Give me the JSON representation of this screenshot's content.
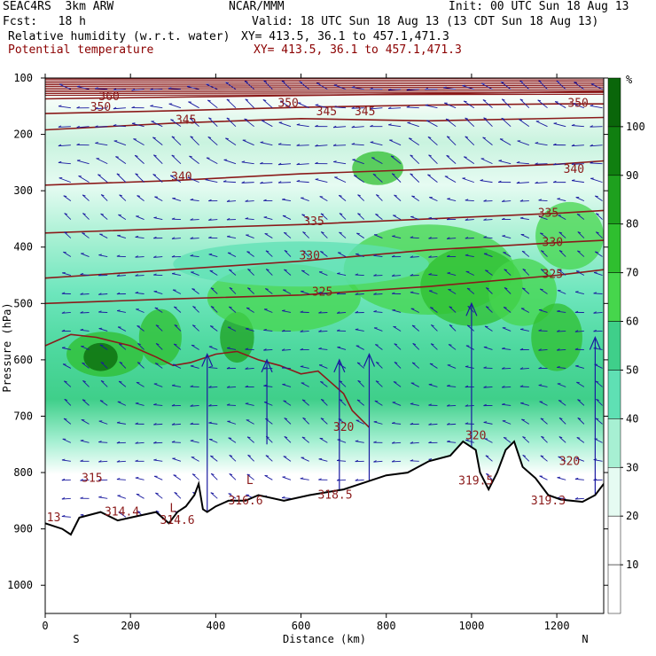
{
  "header": {
    "model": "SEAC4RS  3km ARW",
    "center": "NCAR/MMM",
    "init": "Init: 00 UTC Sun 18 Aug 13",
    "fcst": "Fcst:   18 h",
    "valid": "Valid: 18 UTC Sun 18 Aug 13 (13 CDT Sun 18 Aug 13)",
    "field1_label": "Relative humidity (w.r.t. water)",
    "field1_xy": "XY= 413.5, 36.1 to 457.1,471.3",
    "field2_label": "Potential temperature",
    "field2_xy": "XY= 413.5, 36.1 to 457.1,471.3"
  },
  "colors": {
    "theta": "#8b1a1a",
    "wind": "#1a1aa0",
    "terrain": "#000000"
  },
  "chart_data": {
    "type": "heatmap",
    "xlabel": "Distance (km)",
    "ylabel": "Pressure (hPa)",
    "x_ticks": [
      "0",
      "200",
      "400",
      "600",
      "800",
      "1000",
      "1200"
    ],
    "y_ticks": [
      "100",
      "200",
      "300",
      "400",
      "500",
      "600",
      "700",
      "800",
      "900",
      "1000"
    ],
    "xlim": [
      0,
      1310
    ],
    "ylim": [
      1050,
      100
    ],
    "end_labels": {
      "left": "S",
      "right": "N"
    },
    "colorbar": {
      "unit": "%",
      "levels": [
        "10",
        "20",
        "30",
        "40",
        "50",
        "60",
        "70",
        "80",
        "90",
        "100"
      ],
      "colors": [
        "#ffffff",
        "#ffffff",
        "#e6fbf2",
        "#a7f0d3",
        "#5fe0b4",
        "#3fcf8a",
        "#46d64c",
        "#2fbf2f",
        "#1ea01e",
        "#107f10",
        "#0a660a"
      ]
    },
    "theta_isolines": [
      {
        "label": "360",
        "label_x": 150,
        "points": [
          [
            0,
            137
          ],
          [
            300,
            134
          ],
          [
            600,
            131
          ],
          [
            900,
            128
          ],
          [
            1310,
            124
          ]
        ]
      },
      {
        "label": "350",
        "label_x": 130,
        "points": [
          [
            0,
            163
          ],
          [
            300,
            158
          ],
          [
            600,
            152
          ],
          [
            900,
            148
          ],
          [
            1200,
            146
          ],
          [
            1310,
            146
          ]
        ]
      },
      {
        "label": "350",
        "label_x": 570,
        "points": []
      },
      {
        "label": "350",
        "label_x": 1250,
        "points": []
      },
      {
        "label": "345",
        "label_x": 330,
        "points": [
          [
            0,
            192
          ],
          [
            300,
            180
          ],
          [
            600,
            172
          ],
          [
            900,
            176
          ],
          [
            1310,
            170
          ]
        ]
      },
      {
        "label": "345",
        "label_x": 660,
        "points": []
      },
      {
        "label": "345",
        "label_x": 750,
        "points": []
      },
      {
        "label": "340",
        "label_x": 320,
        "points": [
          [
            0,
            290
          ],
          [
            300,
            282
          ],
          [
            600,
            270
          ],
          [
            900,
            262
          ],
          [
            1200,
            253
          ],
          [
            1310,
            247
          ]
        ]
      },
      {
        "label": "340",
        "label_x": 1240,
        "points": []
      },
      {
        "label": "335",
        "label_x": 630,
        "points": [
          [
            0,
            375
          ],
          [
            300,
            367
          ],
          [
            600,
            360
          ],
          [
            900,
            350
          ],
          [
            1200,
            340
          ],
          [
            1310,
            335
          ]
        ]
      },
      {
        "label": "335",
        "label_x": 1180,
        "points": []
      },
      {
        "label": "330",
        "label_x": 620,
        "points": [
          [
            0,
            455
          ],
          [
            300,
            440
          ],
          [
            600,
            425
          ],
          [
            900,
            405
          ],
          [
            1200,
            392
          ],
          [
            1310,
            388
          ]
        ]
      },
      {
        "label": "330",
        "label_x": 1190,
        "points": []
      },
      {
        "label": "325",
        "label_x": 650,
        "points": [
          [
            0,
            500
          ],
          [
            300,
            492
          ],
          [
            600,
            485
          ],
          [
            900,
            470
          ],
          [
            1200,
            450
          ],
          [
            1310,
            440
          ]
        ]
      },
      {
        "label": "325",
        "label_x": 1190,
        "points": []
      },
      {
        "label": "320",
        "label_x": 700,
        "points": []
      },
      {
        "label": "320",
        "label_x": 1010,
        "points": []
      },
      {
        "label": "320",
        "label_x": 1230,
        "points": []
      },
      {
        "label": "315",
        "label_x": 110,
        "points": []
      },
      {
        "label": "314.6",
        "label_x": 310,
        "points": []
      },
      {
        "label": "316.6",
        "label_x": 470,
        "points": []
      },
      {
        "label": "318.5",
        "label_x": 680,
        "points": []
      },
      {
        "label": "319.5",
        "label_x": 1010,
        "points": []
      },
      {
        "label": "319.3",
        "label_x": 1180,
        "points": []
      },
      {
        "label": "314.4",
        "label_x": 180,
        "points": []
      },
      {
        "label": "13",
        "label_x": 20,
        "points": []
      }
    ],
    "terrain_pressure": [
      [
        0,
        890
      ],
      [
        40,
        900
      ],
      [
        60,
        910
      ],
      [
        80,
        880
      ],
      [
        130,
        870
      ],
      [
        170,
        885
      ],
      [
        200,
        880
      ],
      [
        260,
        870
      ],
      [
        290,
        890
      ],
      [
        310,
        870
      ],
      [
        330,
        860
      ],
      [
        350,
        840
      ],
      [
        360,
        820
      ],
      [
        370,
        865
      ],
      [
        380,
        870
      ],
      [
        400,
        860
      ],
      [
        430,
        850
      ],
      [
        470,
        850
      ],
      [
        500,
        840
      ],
      [
        560,
        850
      ],
      [
        620,
        840
      ],
      [
        700,
        830
      ],
      [
        760,
        815
      ],
      [
        800,
        805
      ],
      [
        850,
        800
      ],
      [
        900,
        780
      ],
      [
        950,
        770
      ],
      [
        980,
        745
      ],
      [
        1010,
        760
      ],
      [
        1020,
        800
      ],
      [
        1040,
        830
      ],
      [
        1060,
        800
      ],
      [
        1080,
        760
      ],
      [
        1100,
        745
      ],
      [
        1120,
        790
      ],
      [
        1150,
        810
      ],
      [
        1180,
        840
      ],
      [
        1210,
        848
      ],
      [
        1260,
        852
      ],
      [
        1290,
        840
      ],
      [
        1310,
        820
      ]
    ],
    "labels_L": [
      {
        "x": 300,
        "p": 870
      },
      {
        "x": 480,
        "p": 820
      }
    ]
  }
}
